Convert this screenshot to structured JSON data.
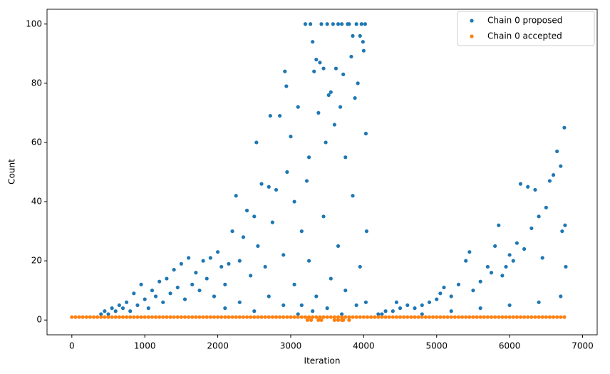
{
  "chart_data": {
    "type": "scatter",
    "xlabel": "Iteration",
    "ylabel": "Count",
    "xlim": [
      -340,
      7200
    ],
    "ylim": [
      -5,
      105
    ],
    "xticks": [
      0,
      1000,
      2000,
      3000,
      4000,
      5000,
      6000,
      7000
    ],
    "yticks": [
      0,
      20,
      40,
      60,
      80,
      100
    ],
    "grid": false,
    "legend": "upper right",
    "series": [
      {
        "name": "Chain 0 proposed",
        "color": "#1f77b4",
        "x": [
          400,
          450,
          500,
          550,
          600,
          650,
          700,
          750,
          800,
          850,
          900,
          950,
          1000,
          1050,
          1100,
          1150,
          1200,
          1250,
          1300,
          1350,
          1400,
          1450,
          1500,
          1550,
          1600,
          1650,
          1700,
          1750,
          1800,
          1850,
          1900,
          1950,
          2000,
          2050,
          2100,
          2150,
          2200,
          2250,
          2300,
          2350,
          2400,
          2450,
          2500,
          2530,
          2550,
          2600,
          2650,
          2700,
          2720,
          2750,
          2800,
          2850,
          2900,
          2920,
          2940,
          2950,
          3000,
          3050,
          3100,
          3150,
          3200,
          3220,
          3250,
          3270,
          3300,
          3320,
          3350,
          3380,
          3400,
          3420,
          3450,
          3480,
          3500,
          3520,
          3550,
          3580,
          3600,
          3620,
          3650,
          3680,
          3700,
          3720,
          3750,
          3780,
          3800,
          3830,
          3850,
          3880,
          3900,
          3920,
          3950,
          3970,
          3990,
          4000,
          4020,
          4030,
          4040,
          2100,
          2300,
          2500,
          2700,
          2900,
          3050,
          3100,
          3150,
          3250,
          3300,
          3350,
          3450,
          3500,
          3550,
          3650,
          3700,
          3750,
          3850,
          3900,
          3950,
          4030,
          4200,
          4250,
          4300,
          4400,
          4450,
          4500,
          4600,
          4700,
          4800,
          4900,
          5000,
          5050,
          5100,
          5200,
          5300,
          5400,
          5450,
          5500,
          5600,
          5700,
          5750,
          5800,
          5850,
          5900,
          5950,
          6000,
          6050,
          6100,
          6150,
          6200,
          6250,
          6300,
          6350,
          6400,
          6450,
          6500,
          6550,
          6600,
          6650,
          6700,
          6720,
          6750,
          6760,
          6770,
          4800,
          5200,
          5600,
          6000,
          6400,
          6700
        ],
        "values": [
          2,
          3,
          2,
          4,
          3,
          5,
          4,
          6,
          3,
          9,
          5,
          12,
          7,
          4,
          10,
          8,
          13,
          6,
          14,
          9,
          17,
          11,
          19,
          7,
          21,
          12,
          16,
          10,
          20,
          14,
          21,
          8,
          23,
          18,
          12,
          19,
          30,
          42,
          20,
          28,
          37,
          15,
          35,
          60,
          25,
          46,
          18,
          45,
          69,
          33,
          44,
          69,
          22,
          84,
          79,
          50,
          62,
          40,
          72,
          30,
          100,
          47,
          55,
          100,
          94,
          84,
          88,
          70,
          87,
          100,
          85,
          60,
          100,
          76,
          77,
          100,
          66,
          85,
          100,
          72,
          100,
          83,
          55,
          100,
          100,
          89,
          96,
          75,
          100,
          80,
          96,
          100,
          94,
          91,
          100,
          63,
          30,
          4,
          6,
          3,
          8,
          5,
          12,
          2,
          5,
          20,
          3,
          8,
          35,
          4,
          14,
          25,
          2,
          10,
          42,
          5,
          18,
          6,
          2,
          2,
          3,
          3,
          6,
          4,
          5,
          4,
          5,
          6,
          7,
          9,
          11,
          8,
          12,
          20,
          23,
          10,
          13,
          18,
          16,
          25,
          32,
          15,
          18,
          22,
          20,
          26,
          46,
          24,
          45,
          31,
          44,
          35,
          21,
          38,
          47,
          49,
          57,
          52,
          30,
          65,
          32,
          18,
          2,
          3,
          4,
          5,
          6,
          8
        ]
      },
      {
        "name": "Chain 0 accepted",
        "color": "#ff7f0e",
        "x": [
          0,
          50,
          100,
          150,
          200,
          250,
          300,
          350,
          400,
          450,
          500,
          550,
          600,
          650,
          700,
          750,
          800,
          850,
          900,
          950,
          1000,
          1050,
          1100,
          1150,
          1200,
          1250,
          1300,
          1350,
          1400,
          1450,
          1500,
          1550,
          1600,
          1650,
          1700,
          1750,
          1800,
          1850,
          1900,
          1950,
          2000,
          2050,
          2100,
          2150,
          2200,
          2250,
          2300,
          2350,
          2400,
          2450,
          2500,
          2550,
          2600,
          2650,
          2700,
          2750,
          2800,
          2850,
          2900,
          2950,
          3000,
          3050,
          3100,
          3150,
          3200,
          3250,
          3300,
          3350,
          3400,
          3450,
          3500,
          3550,
          3600,
          3650,
          3700,
          3750,
          3800,
          3850,
          3900,
          3950,
          4000,
          4050,
          4100,
          4150,
          4200,
          4250,
          4300,
          4350,
          4400,
          4450,
          4500,
          4550,
          4600,
          4650,
          4700,
          4750,
          4800,
          4850,
          4900,
          4950,
          5000,
          5050,
          5100,
          5150,
          5200,
          5250,
          5300,
          5350,
          5400,
          5450,
          5500,
          5550,
          5600,
          5650,
          5700,
          5750,
          5800,
          5850,
          5900,
          5950,
          6000,
          6050,
          6100,
          6150,
          6200,
          6250,
          6300,
          6350,
          6400,
          6450,
          6500,
          6550,
          6600,
          6650,
          6700,
          6750,
          3230,
          3280,
          3380,
          3420,
          3600,
          3650,
          3700,
          3720,
          3800
        ],
        "values": [
          1,
          1,
          1,
          1,
          1,
          1,
          1,
          1,
          1,
          1,
          1,
          1,
          1,
          1,
          1,
          1,
          1,
          1,
          1,
          1,
          1,
          1,
          1,
          1,
          1,
          1,
          1,
          1,
          1,
          1,
          1,
          1,
          1,
          1,
          1,
          1,
          1,
          1,
          1,
          1,
          1,
          1,
          1,
          1,
          1,
          1,
          1,
          1,
          1,
          1,
          1,
          1,
          1,
          1,
          1,
          1,
          1,
          1,
          1,
          1,
          1,
          1,
          1,
          1,
          1,
          1,
          1,
          1,
          1,
          1,
          1,
          1,
          1,
          1,
          1,
          1,
          1,
          1,
          1,
          1,
          1,
          1,
          1,
          1,
          1,
          1,
          1,
          1,
          1,
          1,
          1,
          1,
          1,
          1,
          1,
          1,
          1,
          1,
          1,
          1,
          1,
          1,
          1,
          1,
          1,
          1,
          1,
          1,
          1,
          1,
          1,
          1,
          1,
          1,
          1,
          1,
          1,
          1,
          1,
          1,
          1,
          1,
          1,
          1,
          1,
          1,
          1,
          1,
          1,
          1,
          1,
          1,
          1,
          1,
          1,
          1,
          0,
          0,
          0,
          0,
          0,
          0,
          0,
          0,
          0
        ]
      }
    ]
  }
}
